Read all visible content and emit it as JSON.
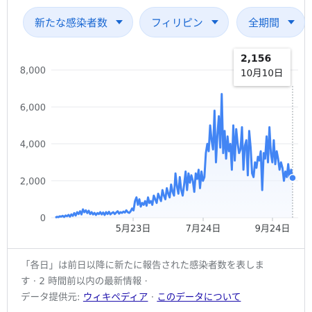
{
  "filters": {
    "metric": "新たな感染者数",
    "region": "フィリピン",
    "period": "全期間"
  },
  "tooltip": {
    "value": "2,156",
    "date": "10月10日"
  },
  "footer": {
    "note_line1": "「各日」は前日以降に新たに報告された感染者数を表しま",
    "note_line2": "す · 2 時間前以内の最新情報 ·",
    "source_label": "データ提供元:",
    "source_link": "ウィキペディア",
    "sep": "·",
    "about_link": "このデータについて"
  },
  "chart_data": {
    "type": "area",
    "title": "",
    "xlabel": "",
    "ylabel": "",
    "ylim": [
      0,
      8000
    ],
    "yticks": [
      0,
      2000,
      4000,
      6000,
      8000
    ],
    "ytick_labels": [
      "0",
      "2,000",
      "4,000",
      "6,000",
      "8,000"
    ],
    "xtick_labels": [
      "5月23日",
      "7月24日",
      "9月24日"
    ],
    "grid": true,
    "color": "#4285f4",
    "series": [
      {
        "values": [
          0,
          50,
          30,
          80,
          60,
          100,
          40,
          120,
          80,
          150,
          60,
          180,
          100,
          250,
          120,
          300,
          200,
          350,
          180,
          450,
          300,
          400,
          250,
          380,
          200,
          300,
          180,
          260,
          150,
          250,
          200,
          300,
          180,
          280,
          150,
          300,
          200,
          320,
          180,
          250,
          300,
          200,
          280,
          350,
          220,
          300,
          260,
          330,
          280,
          400,
          300,
          260,
          350,
          500,
          400,
          900,
          1100,
          700,
          1000,
          600,
          800,
          700,
          900,
          650,
          1100,
          800,
          900,
          700,
          1200,
          1000,
          800,
          1300,
          1100,
          900,
          1500,
          1200,
          1000,
          1600,
          1300,
          1100,
          1800,
          1400,
          1200,
          2400,
          1700,
          1300,
          2200,
          1500,
          1200,
          1800,
          2500,
          1500,
          2400,
          1900,
          2300,
          2000,
          1400,
          2400,
          2100,
          2600,
          1600,
          2500,
          2000,
          2200,
          3500,
          4000,
          3600,
          5000,
          4200,
          3700,
          5800,
          3000,
          4500,
          5500,
          3800,
          6700,
          3500,
          4700,
          3200,
          4400,
          3600,
          4000,
          2600,
          5000,
          3100,
          4800,
          4000,
          3500,
          3700,
          4900,
          2600,
          3900,
          4200,
          2300,
          4700,
          3800,
          2400,
          2200,
          3000,
          2700,
          3300,
          3100,
          3600,
          1500,
          3500,
          3200,
          4400,
          3000,
          4900,
          3500,
          3000,
          4200,
          2900,
          3600,
          3200,
          2600,
          3000,
          2700,
          2000,
          2500,
          2200,
          2900,
          2100,
          2600,
          2156
        ]
      }
    ]
  }
}
